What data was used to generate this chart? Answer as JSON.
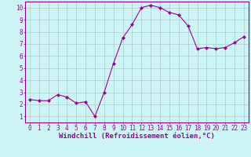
{
  "x": [
    0,
    1,
    2,
    3,
    4,
    5,
    6,
    7,
    8,
    9,
    10,
    11,
    12,
    13,
    14,
    15,
    16,
    17,
    18,
    19,
    20,
    21,
    22,
    23
  ],
  "y": [
    2.4,
    2.3,
    2.3,
    2.8,
    2.6,
    2.1,
    2.2,
    1.0,
    3.0,
    5.4,
    7.5,
    8.6,
    10.0,
    10.2,
    10.0,
    9.6,
    9.4,
    8.5,
    6.6,
    6.7,
    6.6,
    6.7,
    7.1,
    7.6
  ],
  "line_color": "#990099",
  "marker": "D",
  "marker_size": 2.0,
  "bg_color": "#cef5f5",
  "grid_color": "#aacccc",
  "xlabel": "Windchill (Refroidissement éolien,°C)",
  "xlim": [
    -0.5,
    23.5
  ],
  "ylim": [
    0.5,
    10.5
  ],
  "xtick_labels": [
    "0",
    "1",
    "2",
    "3",
    "4",
    "5",
    "6",
    "7",
    "8",
    "9",
    "10",
    "11",
    "12",
    "13",
    "14",
    "15",
    "16",
    "17",
    "18",
    "19",
    "20",
    "21",
    "22",
    "23"
  ],
  "ytick_values": [
    1,
    2,
    3,
    4,
    5,
    6,
    7,
    8,
    9,
    10
  ],
  "label_color": "#990099",
  "tick_fontsize": 5.5,
  "xlabel_fontsize": 6.5
}
